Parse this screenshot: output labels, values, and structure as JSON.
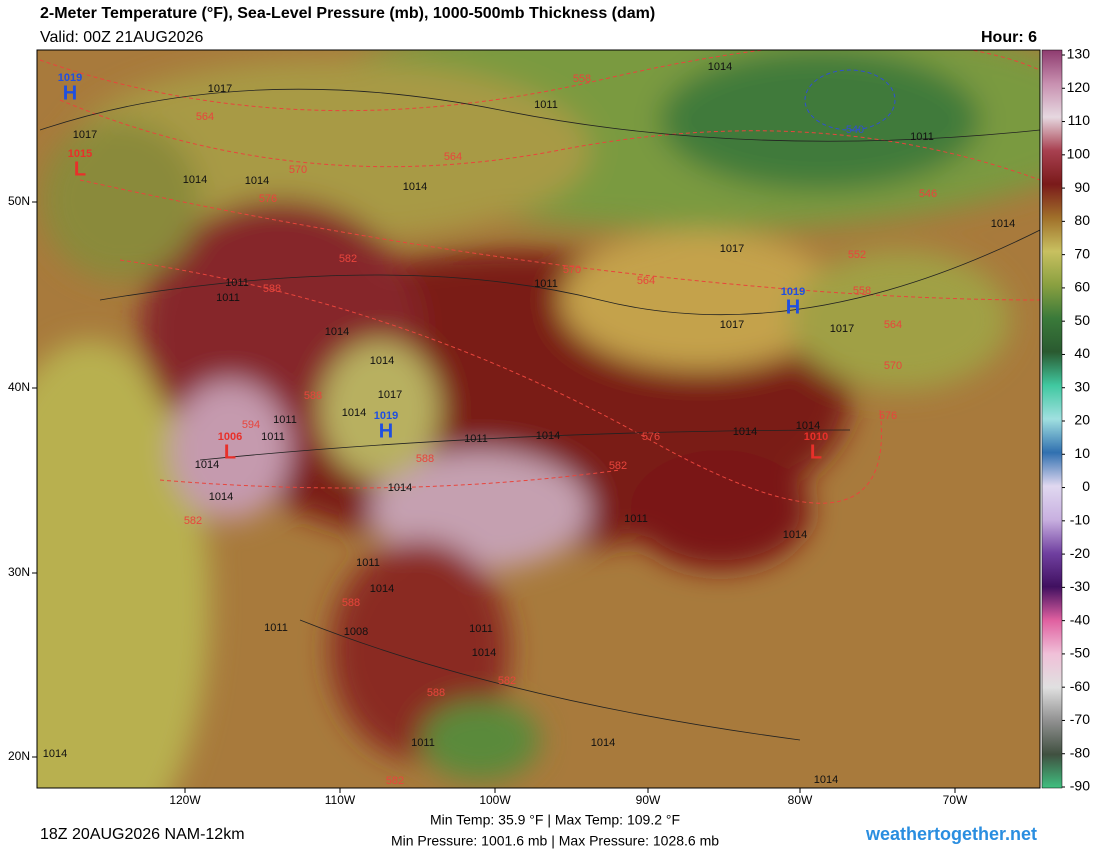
{
  "header": {
    "title": "2-Meter Temperature (°F), Sea-Level Pressure (mb), 1000-500mb Thickness (dam)",
    "valid": "Valid: 00Z 21AUG2026",
    "hour": "Hour: 6"
  },
  "footer": {
    "run": "18Z 20AUG2026 NAM-12km",
    "temp_range": "Min Temp:  35.9 °F | Max Temp: 109.2 °F",
    "pressure_range": "Min Pressure: 1001.6 mb | Max Pressure: 1028.6 mb",
    "site": "weathertogether.net"
  },
  "map": {
    "lat_labels": [
      "50N",
      "40N",
      "30N",
      "20N"
    ],
    "lon_labels": [
      "120W",
      "110W",
      "100W",
      "90W",
      "80W",
      "70W"
    ],
    "pressure_centers": [
      {
        "letter": "H",
        "value": 1019
      },
      {
        "letter": "L",
        "value": 1015
      },
      {
        "letter": "H",
        "value": 1019
      },
      {
        "letter": "H",
        "value": 1019
      },
      {
        "letter": "L",
        "value": 1006
      },
      {
        "letter": "L",
        "value": 1010
      }
    ],
    "cold_thickness_label": 540,
    "isobar_labels": [
      1017,
      1017,
      1014,
      1014,
      1014,
      1011,
      1014,
      1011,
      1014,
      1017,
      1011,
      1011,
      1011,
      1014,
      1014,
      1017,
      1017,
      1017,
      1014,
      1011,
      1011,
      1011,
      1014,
      1014,
      1014,
      1014,
      1014,
      1014,
      1011,
      1014,
      1011,
      1014,
      1011,
      1008,
      1011,
      1014,
      1011,
      1014,
      1014,
      1014
    ],
    "thickness_labels": [
      558,
      564,
      564,
      570,
      576,
      546,
      552,
      570,
      564,
      558,
      564,
      570,
      576,
      582,
      588,
      594,
      588,
      588,
      576,
      582,
      582,
      588,
      588,
      582,
      582
    ]
  },
  "colorbar": {
    "ticks": [
      130,
      120,
      110,
      100,
      90,
      80,
      70,
      60,
      50,
      40,
      30,
      20,
      10,
      0,
      -10,
      -20,
      -30,
      -40,
      -50,
      -60,
      -70,
      -80,
      -90
    ],
    "colors": [
      "#8e3b6f",
      "#c890b0",
      "#e6d8e0",
      "#a84050",
      "#7a1a1a",
      "#a0702a",
      "#c8c060",
      "#8aa040",
      "#3a7a3a",
      "#2a5a30",
      "#40c8a0",
      "#a0e0e0",
      "#3070b0",
      "#e0d8f0",
      "#c8b0e0",
      "#7040a0",
      "#401060",
      "#e060a0",
      "#f0c0d8",
      "#e0e0e0",
      "#909090",
      "#405040",
      "#40c080"
    ]
  }
}
